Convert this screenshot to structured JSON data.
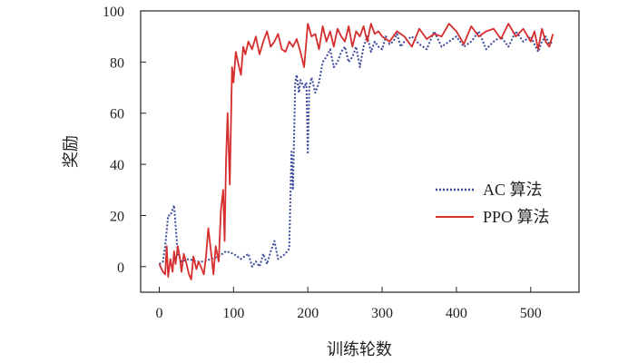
{
  "chart_data": {
    "type": "line",
    "title": "",
    "xlabel": "训练轮数",
    "ylabel": "奖励",
    "xlim": [
      -25,
      565
    ],
    "ylim": [
      -10,
      100
    ],
    "xticks": [
      0,
      100,
      200,
      300,
      400,
      500
    ],
    "yticks": [
      0,
      20,
      40,
      60,
      80,
      100
    ],
    "grid": false,
    "legend_position": "right-middle",
    "series": [
      {
        "name": "AC 算法",
        "style": "dotted",
        "color": "#3b4a9b",
        "x": [
          0,
          5,
          8,
          12,
          15,
          20,
          25,
          30,
          40,
          50,
          60,
          70,
          80,
          90,
          100,
          110,
          115,
          120,
          125,
          130,
          135,
          140,
          145,
          150,
          155,
          160,
          165,
          170,
          172,
          175,
          178,
          180,
          183,
          185,
          188,
          190,
          195,
          198,
          200,
          202,
          205,
          210,
          215,
          220,
          225,
          230,
          235,
          240,
          245,
          250,
          255,
          260,
          265,
          270,
          275,
          280,
          285,
          290,
          295,
          300,
          305,
          310,
          315,
          320,
          325,
          330,
          340,
          350,
          360,
          370,
          380,
          390,
          400,
          410,
          420,
          430,
          440,
          450,
          460,
          470,
          480,
          490,
          500,
          505,
          510,
          515,
          520,
          525,
          530
        ],
        "y": [
          1,
          2,
          8,
          20,
          20,
          24,
          5,
          2,
          3,
          2,
          2,
          3,
          4,
          6,
          5,
          3,
          4,
          5,
          0,
          2,
          0,
          5,
          1,
          6,
          10,
          3,
          4,
          5,
          6,
          7,
          45,
          30,
          72,
          75,
          68,
          73,
          70,
          72,
          44,
          70,
          74,
          68,
          72,
          80,
          82,
          85,
          78,
          80,
          84,
          86,
          80,
          82,
          86,
          78,
          86,
          90,
          84,
          88,
          86,
          85,
          90,
          87,
          88,
          91,
          86,
          88,
          90,
          87,
          85,
          92,
          86,
          88,
          90,
          86,
          88,
          92,
          85,
          88,
          90,
          86,
          92,
          88,
          90,
          87,
          84,
          88,
          90,
          87,
          88
        ]
      },
      {
        "name": "PPO 算法",
        "style": "solid",
        "color": "#d62d2d",
        "x": [
          0,
          5,
          8,
          10,
          12,
          15,
          18,
          20,
          22,
          25,
          28,
          30,
          33,
          36,
          40,
          43,
          46,
          50,
          53,
          56,
          60,
          63,
          66,
          70,
          73,
          76,
          80,
          83,
          86,
          88,
          90,
          92,
          95,
          98,
          100,
          103,
          106,
          110,
          113,
          116,
          120,
          125,
          130,
          135,
          140,
          145,
          150,
          155,
          160,
          165,
          170,
          175,
          180,
          185,
          190,
          195,
          200,
          205,
          210,
          215,
          220,
          225,
          230,
          235,
          240,
          245,
          250,
          255,
          260,
          265,
          270,
          275,
          280,
          285,
          290,
          295,
          300,
          310,
          320,
          330,
          340,
          350,
          360,
          370,
          380,
          390,
          400,
          410,
          420,
          430,
          440,
          450,
          460,
          470,
          480,
          490,
          500,
          505,
          510,
          515,
          520,
          525,
          530
        ],
        "y": [
          1,
          -2,
          -3,
          8,
          -4,
          3,
          -2,
          6,
          1,
          8,
          3,
          -2,
          5,
          2,
          -3,
          -5,
          4,
          -1,
          2,
          0,
          -3,
          4,
          15,
          5,
          -3,
          8,
          2,
          22,
          30,
          10,
          42,
          60,
          32,
          78,
          72,
          84,
          80,
          75,
          86,
          83,
          88,
          85,
          90,
          83,
          88,
          92,
          86,
          88,
          91,
          85,
          84,
          88,
          86,
          89,
          84,
          78,
          95,
          90,
          91,
          85,
          94,
          88,
          92,
          86,
          93,
          90,
          88,
          94,
          86,
          92,
          90,
          94,
          88,
          95,
          91,
          92,
          90,
          88,
          92,
          90,
          86,
          93,
          89,
          91,
          90,
          95,
          92,
          87,
          94,
          90,
          92,
          93,
          89,
          95,
          90,
          93,
          88,
          92,
          85,
          93,
          88,
          86,
          91
        ]
      }
    ]
  }
}
